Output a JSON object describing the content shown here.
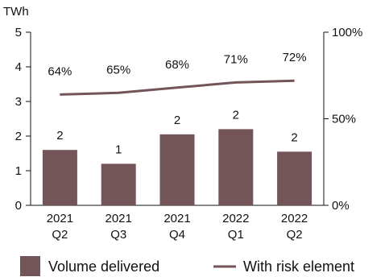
{
  "chart_data": {
    "type": "bar",
    "title": "",
    "y_unit_label": "TWh",
    "categories": [
      [
        "2021",
        "Q2"
      ],
      [
        "2021",
        "Q3"
      ],
      [
        "2021",
        "Q4"
      ],
      [
        "2022",
        "Q1"
      ],
      [
        "2022",
        "Q2"
      ]
    ],
    "series": [
      {
        "name": "Volume delivered",
        "type": "bar",
        "axis": "left",
        "color": "#735458",
        "values": [
          1.6,
          1.2,
          2.05,
          2.2,
          1.55
        ],
        "data_labels": [
          "2",
          "1",
          "2",
          "2",
          "2"
        ]
      },
      {
        "name": "With risk element",
        "type": "line",
        "axis": "right",
        "color": "#735458",
        "values": [
          64,
          65,
          68,
          71,
          72
        ],
        "data_labels": [
          "64%",
          "65%",
          "68%",
          "71%",
          "72%"
        ]
      }
    ],
    "y_left": {
      "min": 0,
      "max": 5,
      "ticks": [
        "0",
        "1",
        "2",
        "3",
        "4",
        "5"
      ]
    },
    "y_right": {
      "min": 0,
      "max": 100,
      "ticks": [
        "0%",
        "50%",
        "100%"
      ],
      "tick_values": [
        0,
        50,
        100
      ]
    },
    "grid": false,
    "legend": "bottom"
  }
}
